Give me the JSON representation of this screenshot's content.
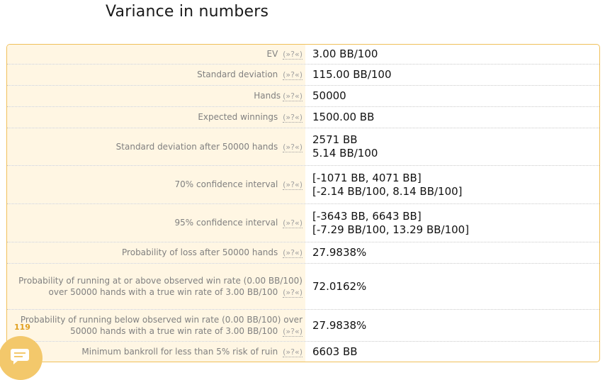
{
  "page": {
    "title": "Variance in numbers"
  },
  "help_link_text": "(»?«)",
  "rows": [
    {
      "label": "EV",
      "values": [
        "3.00 BB/100"
      ]
    },
    {
      "label": "Standard deviation",
      "values": [
        "115.00 BB/100"
      ]
    },
    {
      "label": "Hands",
      "values": [
        "50000"
      ]
    },
    {
      "label": "Expected winnings",
      "values": [
        "1500.00 BB"
      ]
    },
    {
      "label": "Standard deviation after 50000 hands",
      "values": [
        "2571 BB",
        "5.14 BB/100"
      ]
    },
    {
      "label": "70% confidence interval",
      "values": [
        "[-1071 BB, 4071 BB]",
        "[-2.14 BB/100, 8.14 BB/100]"
      ]
    },
    {
      "label": "95% confidence interval",
      "values": [
        "[-3643 BB, 6643 BB]",
        "[-7.29 BB/100, 13.29 BB/100]"
      ]
    },
    {
      "label": "Probability of loss after 50000 hands",
      "values": [
        "27.9838%"
      ]
    },
    {
      "label": "Probability of running at or above observed win rate (0.00 BB/100) over 50000 hands with a true win rate of 3.00 BB/100",
      "values": [
        "72.0162%"
      ]
    },
    {
      "label": "Probability of running below observed win rate (0.00 BB/100) over 50000 hands with a true win rate of 3.00 BB/100",
      "values": [
        "27.9838%"
      ]
    },
    {
      "label": "Minimum bankroll for less than 5% risk of ruin",
      "values": [
        "6603 BB"
      ]
    }
  ],
  "chat_widget": {
    "count": "119",
    "icon": "chat-icon",
    "color": "#f3c86b"
  }
}
